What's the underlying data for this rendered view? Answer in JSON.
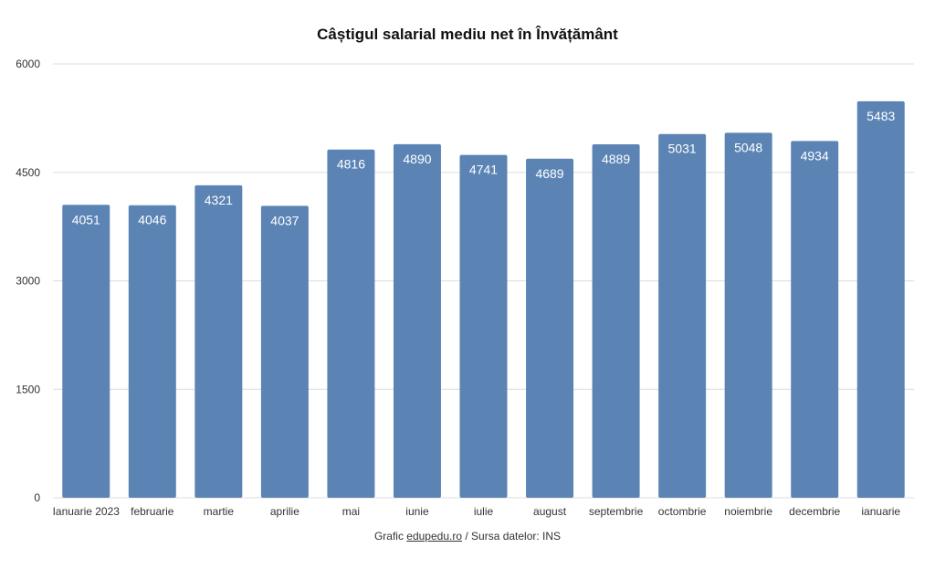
{
  "footer": {
    "prefix": "Grafic ",
    "link_text": "edupedu.ro",
    "suffix": " / Sursa datelor: INS"
  },
  "chart_data": {
    "type": "bar",
    "title": "Câștigul salarial mediu net în Învățământ",
    "xlabel": "",
    "ylabel": "",
    "ylim": [
      0,
      6000
    ],
    "yticks": [
      0,
      1500,
      3000,
      4500,
      6000
    ],
    "grid": true,
    "categories": [
      "Ianuarie 2023",
      "februarie",
      "martie",
      "aprilie",
      "mai",
      "iunie",
      "iulie",
      "august",
      "septembrie",
      "octombrie",
      "noiembrie",
      "decembrie",
      "ianuarie"
    ],
    "values": [
      4051,
      4046,
      4321,
      4037,
      4816,
      4890,
      4741,
      4689,
      4889,
      5031,
      5048,
      4934,
      5483
    ],
    "color": "#5b84b5"
  }
}
